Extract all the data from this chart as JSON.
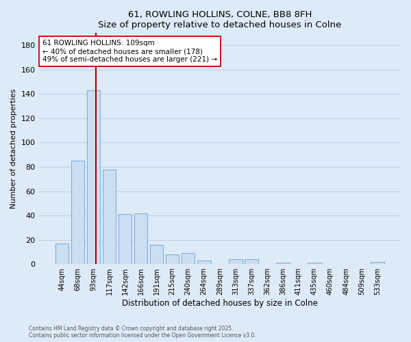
{
  "title": "61, ROWLING HOLLINS, COLNE, BB8 8FH",
  "subtitle": "Size of property relative to detached houses in Colne",
  "xlabel": "Distribution of detached houses by size in Colne",
  "ylabel": "Number of detached properties",
  "bar_labels": [
    "44sqm",
    "68sqm",
    "93sqm",
    "117sqm",
    "142sqm",
    "166sqm",
    "191sqm",
    "215sqm",
    "240sqm",
    "264sqm",
    "289sqm",
    "313sqm",
    "337sqm",
    "362sqm",
    "386sqm",
    "411sqm",
    "435sqm",
    "460sqm",
    "484sqm",
    "509sqm",
    "533sqm"
  ],
  "bar_values": [
    17,
    85,
    143,
    78,
    41,
    42,
    16,
    8,
    9,
    3,
    0,
    4,
    4,
    0,
    1,
    0,
    1,
    0,
    0,
    0,
    2
  ],
  "bar_color": "#ccdff2",
  "bar_edge_color": "#7fb0d8",
  "ylim": [
    0,
    190
  ],
  "yticks": [
    0,
    20,
    40,
    60,
    80,
    100,
    120,
    140,
    160,
    180
  ],
  "vline_color": "#aa0000",
  "annotation_title": "61 ROWLING HOLLINS: 109sqm",
  "annotation_line1": "← 40% of detached houses are smaller (178)",
  "annotation_line2": "49% of semi-detached houses are larger (221) →",
  "annotation_box_color": "#ffffff",
  "annotation_border_color": "#cc0000",
  "footer_line1": "Contains HM Land Registry data © Crown copyright and database right 2025.",
  "footer_line2": "Contains public sector information licensed under the Open Government Licence v3.0.",
  "background_color": "#ddeaf7",
  "plot_background": "#ddeaf7",
  "grid_color": "#c0d0e8"
}
